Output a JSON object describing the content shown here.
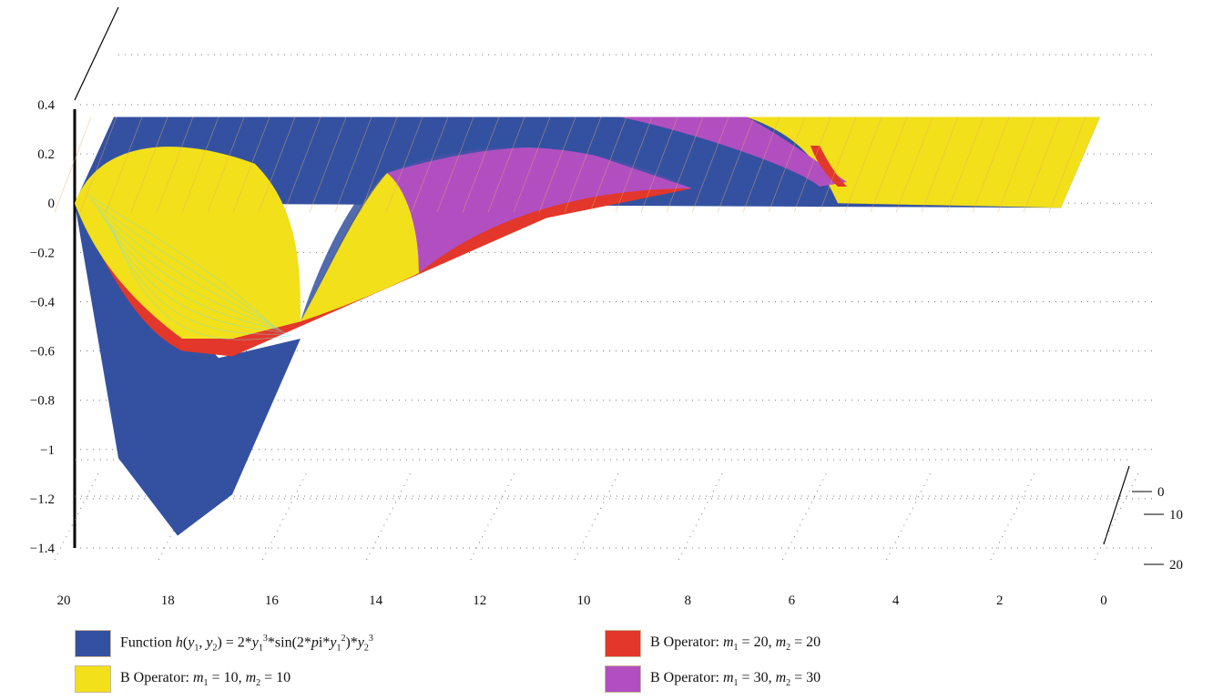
{
  "chart_data": {
    "type": "surface3d",
    "title": "",
    "x_axis": {
      "ticks": [
        "20",
        "18",
        "16",
        "14",
        "12",
        "10",
        "8",
        "6",
        "4",
        "2",
        "0"
      ],
      "range": [
        0,
        20
      ]
    },
    "y_axis": {
      "ticks": [
        "0",
        "10",
        "20"
      ],
      "range": [
        0,
        20
      ]
    },
    "z_axis": {
      "ticks": [
        "0.4",
        "0.2",
        "0",
        "−0.2",
        "−0.4",
        "−0.6",
        "−0.8",
        "−1",
        "−1.2",
        "−1.4"
      ],
      "range": [
        -1.4,
        0.4
      ]
    },
    "grid": true,
    "legend": {
      "placement": "bottom",
      "entries": [
        {
          "key": "function",
          "label": "Function h(y1, y2) = 2*y1^3*sin(2*pi*y1^2)*y2^3",
          "color": "#3451a1"
        },
        {
          "key": "b10",
          "label": "B Operator: m1 = 10, m2 = 10",
          "color": "#f2e01a"
        },
        {
          "key": "b20",
          "label": "B Operator: m1 = 20, m2 = 20",
          "color": "#e2372a"
        },
        {
          "key": "b30",
          "label": "B Operator: m1 = 30, m2 = 30",
          "color": "#b14fc1"
        }
      ]
    },
    "series": [
      {
        "name": "Function h(y1, y2) = 2*y1^3*sin(2*pi*y1^2)*y2^3",
        "min_value": -1.35,
        "min_at_x": 18,
        "max_value": 0.32,
        "max_at_x": 12
      },
      {
        "name": "B Operator: m1 = 10, m2 = 10",
        "min_value": -0.55,
        "min_at_x": 17
      },
      {
        "name": "B Operator: m1 = 20, m2 = 20",
        "min_value": -0.6,
        "min_at_x": 17
      },
      {
        "name": "B Operator: m1 = 30, m2 = 30",
        "min_value": -0.15,
        "min_at_x": 12
      }
    ]
  }
}
